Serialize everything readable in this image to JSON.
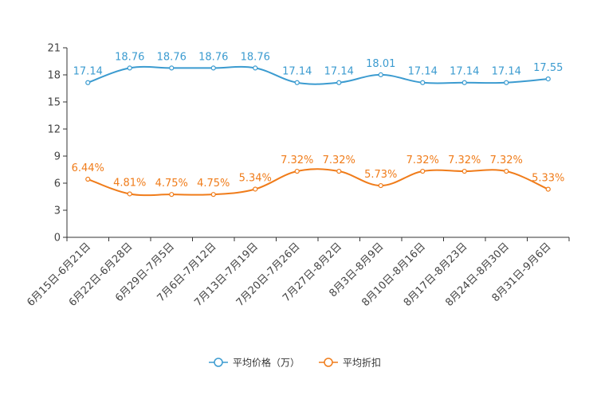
{
  "chart_data": {
    "type": "line",
    "title": "",
    "xlabel": "",
    "ylabel": "",
    "ylim": [
      0,
      21
    ],
    "yticks": [
      0,
      3,
      6,
      9,
      12,
      15,
      18,
      21
    ],
    "grid": false,
    "legend_position": "bottom-center",
    "categories": [
      "6月15日-6月21日",
      "6月22日-6月28日",
      "6月29日-7月5日",
      "7月6日-7月12日",
      "7月13日-7月19日",
      "7月20日-7月26日",
      "7月27日-8月2日",
      "8月3日-8月9日",
      "8月10日-8月16日",
      "8月17日-8月23日",
      "8月24日-8月30日",
      "8月31日-9月6日"
    ],
    "series": [
      {
        "name": "平均价格（万）",
        "color": "#3b9bd0",
        "values": [
          17.14,
          18.76,
          18.76,
          18.76,
          18.76,
          17.14,
          17.14,
          18.01,
          17.14,
          17.14,
          17.14,
          17.55
        ],
        "labels": [
          "17.14",
          "18.76",
          "18.76",
          "18.76",
          "18.76",
          "17.14",
          "17.14",
          "18.01",
          "17.14",
          "17.14",
          "17.14",
          "17.55"
        ]
      },
      {
        "name": "平均折扣",
        "color": "#f07c1a",
        "values": [
          6.44,
          4.81,
          4.75,
          4.75,
          5.34,
          7.32,
          7.32,
          5.73,
          7.32,
          7.32,
          7.32,
          5.33
        ],
        "labels": [
          "6.44%",
          "4.81%",
          "4.75%",
          "4.75%",
          "5.34%",
          "7.32%",
          "7.32%",
          "5.73%",
          "7.32%",
          "7.32%",
          "7.32%",
          "5.33%"
        ]
      }
    ]
  }
}
